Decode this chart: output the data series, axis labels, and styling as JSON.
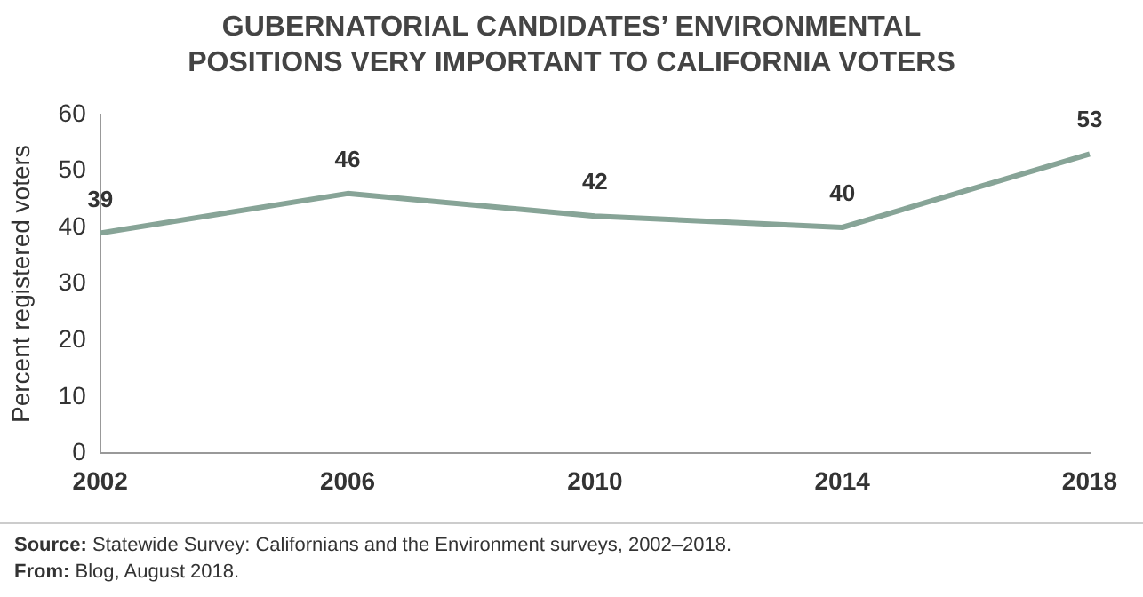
{
  "chart_data": {
    "type": "line",
    "title": "GUBERNATORIAL CANDIDATES’ ENVIRONMENTAL POSITIONS VERY IMPORTANT TO CALIFORNIA VOTERS",
    "ylabel": "Percent registered voters",
    "categories": [
      "2002",
      "2006",
      "2010",
      "2014",
      "2018"
    ],
    "series": [
      {
        "color": "#87a497",
        "values": [
          39,
          46,
          42,
          40,
          53
        ]
      }
    ],
    "ylim": [
      0,
      60
    ],
    "yticks": [
      0,
      10,
      20,
      30,
      40,
      50,
      60
    ],
    "grid": false,
    "legend": false,
    "marker": "none",
    "line_style": "solid",
    "data_labels": true,
    "annotations": [
      "Source: Statewide Survey: Californians and the Environment surveys, 2002–2018.",
      "From: Blog, August 2018."
    ]
  }
}
